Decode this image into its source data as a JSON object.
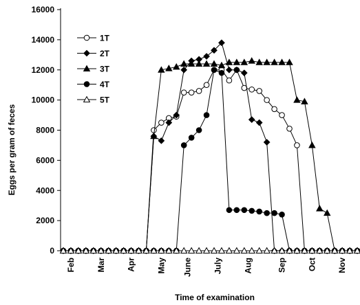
{
  "chart_data": {
    "type": "line",
    "title": "",
    "xlabel": "Time of examination",
    "ylabel": "Eggs per gram of  feces",
    "ylim": [
      0,
      16000
    ],
    "yticks": [
      0,
      2000,
      4000,
      6000,
      8000,
      10000,
      12000,
      14000,
      16000
    ],
    "ytick_labels": [
      "0",
      "2000",
      "4000",
      "6000",
      "8000",
      "10000",
      "12000",
      "14000",
      "16000"
    ],
    "x_months": [
      "Feb",
      "Mar",
      "Apr",
      "May",
      "June",
      "July",
      "Aug",
      "Sep",
      "Oct",
      "Nov"
    ],
    "x_month_positions": [
      1,
      5,
      9,
      13,
      16.5,
      20.5,
      24.5,
      29,
      33,
      37
    ],
    "x": [
      0,
      1,
      2,
      3,
      4,
      5,
      6,
      7,
      8,
      9,
      10,
      11,
      12,
      13,
      14,
      15,
      16,
      17,
      18,
      19,
      20,
      21,
      22,
      23,
      24,
      25,
      26,
      27,
      28,
      29,
      30,
      31,
      32,
      33,
      34,
      35,
      36,
      37,
      38,
      39
    ],
    "grid": false,
    "legend_position": "top-left",
    "series": [
      {
        "name": "1T",
        "marker": "circle-open",
        "values": [
          0,
          0,
          0,
          0,
          0,
          0,
          0,
          0,
          0,
          0,
          0,
          0,
          8000,
          8500,
          8800,
          8900,
          10500,
          10500,
          10600,
          11000,
          12000,
          12000,
          11300,
          12000,
          10800,
          10700,
          10600,
          10000,
          9400,
          9000,
          8100,
          7000,
          0,
          0,
          0,
          0,
          0,
          0,
          0,
          0
        ]
      },
      {
        "name": "2T",
        "marker": "diamond",
        "values": [
          0,
          0,
          0,
          0,
          0,
          0,
          0,
          0,
          0,
          0,
          0,
          0,
          7600,
          7300,
          8500,
          9000,
          12000,
          12600,
          12700,
          12900,
          13300,
          13800,
          12000,
          12000,
          11800,
          8700,
          8500,
          7200,
          0,
          0,
          0,
          0,
          0,
          0,
          0,
          0,
          0,
          0,
          0,
          0
        ]
      },
      {
        "name": "3T",
        "marker": "triangle",
        "values": [
          0,
          0,
          0,
          0,
          0,
          0,
          0,
          0,
          0,
          0,
          0,
          0,
          7600,
          12000,
          12100,
          12200,
          12400,
          12400,
          12400,
          12400,
          12400,
          12300,
          12500,
          12500,
          12500,
          12600,
          12500,
          12500,
          12500,
          12500,
          12500,
          10000,
          9900,
          7000,
          2800,
          2500,
          0,
          0,
          0,
          0
        ]
      },
      {
        "name": "4T",
        "marker": "circle",
        "values": [
          0,
          0,
          0,
          0,
          0,
          0,
          0,
          0,
          0,
          0,
          0,
          0,
          0,
          0,
          0,
          0,
          7000,
          7500,
          8000,
          9000,
          12000,
          11800,
          2700,
          2700,
          2700,
          2650,
          2600,
          2500,
          2500,
          2400,
          0,
          0,
          0,
          0,
          0,
          0,
          0,
          0,
          0,
          0
        ]
      },
      {
        "name": "5T",
        "marker": "triangle-open",
        "values": [
          0,
          0,
          0,
          0,
          0,
          0,
          0,
          0,
          0,
          0,
          0,
          0,
          0,
          0,
          0,
          0,
          0,
          0,
          0,
          0,
          0,
          0,
          0,
          0,
          0,
          0,
          0,
          0,
          0,
          0,
          0,
          0,
          0,
          0,
          0,
          0,
          0,
          0,
          0,
          0
        ]
      }
    ]
  }
}
